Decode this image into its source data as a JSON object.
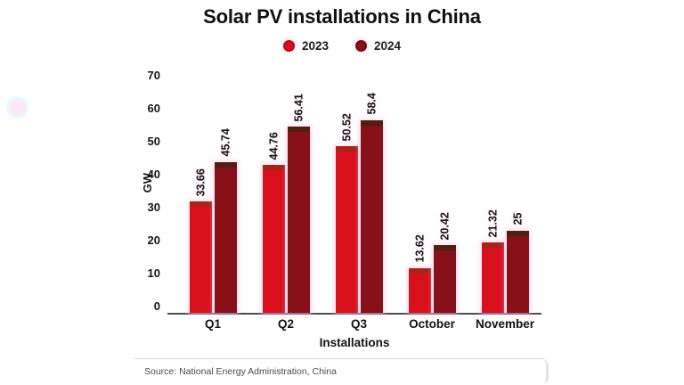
{
  "title": "Solar PV installations in China",
  "source": "Source: National Energy Administration, China",
  "colors": {
    "series_2023": "#d8101c",
    "series_2023_cap": "#a8241a",
    "series_2024": "#871019",
    "series_2024_cap": "#4e1f12",
    "axis": "#4d4d4d",
    "title_text": "#101010",
    "source_text": "#4a4a4a"
  },
  "chart_data": {
    "type": "bar",
    "title": "Solar PV installations in China",
    "categories": [
      "Q1",
      "Q2",
      "Q3",
      "October",
      "November"
    ],
    "series": [
      {
        "name": "2023",
        "color": "#d8101c",
        "values": [
          33.66,
          44.76,
          50.52,
          13.62,
          21.32
        ]
      },
      {
        "name": "2024",
        "color": "#871019",
        "values": [
          45.74,
          56.41,
          58.4,
          20.42,
          25
        ]
      }
    ],
    "data_labels_shown": true,
    "xlabel": "Installations",
    "ylabel": "GW",
    "ylim": [
      0,
      70
    ],
    "yticks": [
      0,
      10,
      20,
      30,
      40,
      50,
      60,
      70
    ],
    "grid": false,
    "legend_position": "top"
  }
}
